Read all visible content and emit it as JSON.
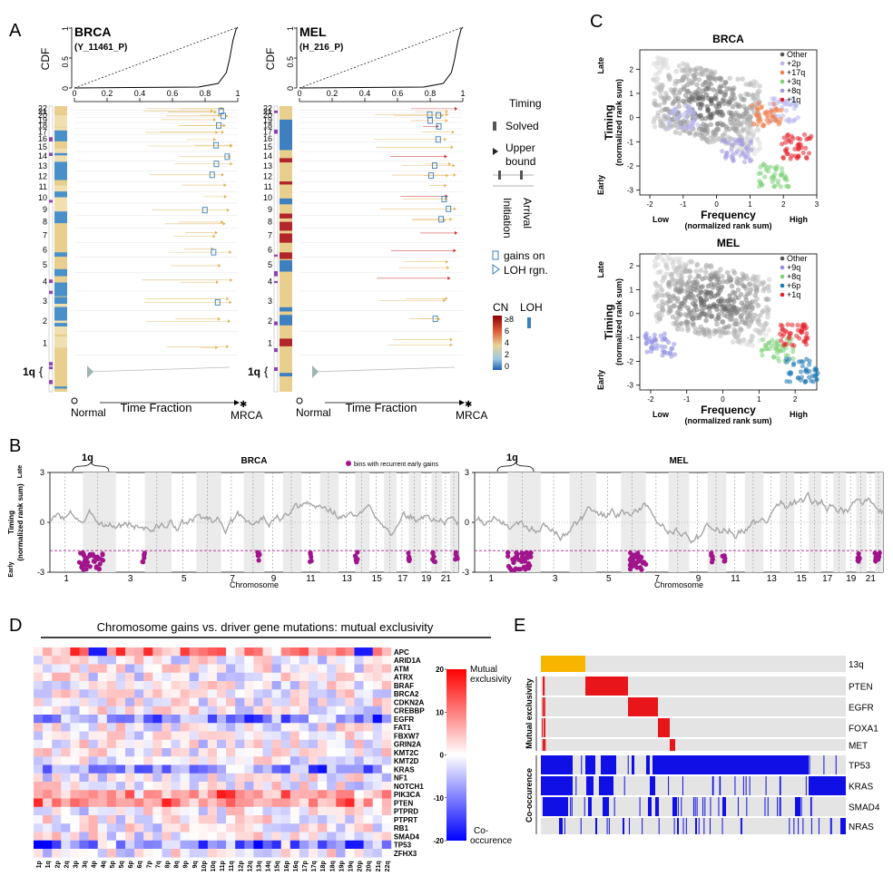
{
  "panel_letters": {
    "a": "A",
    "b": "B",
    "c": "C",
    "d": "D",
    "e": "E"
  },
  "panel_a": {
    "tumors": [
      {
        "name": "BRCA",
        "sample": "(Y_11461_P)"
      },
      {
        "name": "MEL",
        "sample": "(H_216_P)"
      }
    ],
    "cdf_label": "CDF",
    "cdf_ticks": [
      "0",
      "0.5",
      "1"
    ],
    "x_ticks": [
      "0",
      "0.2",
      "0.4",
      "0.6",
      "0.8",
      "1"
    ],
    "chromosomes": [
      "22",
      "21",
      "20",
      "19",
      "18",
      "17",
      "16",
      "15",
      "14",
      "13",
      "12",
      "11",
      "10",
      "9",
      "8",
      "7",
      "6",
      "5",
      "4",
      "3",
      "2",
      "1"
    ],
    "highlight": "1q",
    "normal": "Normal",
    "time_fraction": "Time Fraction",
    "mrca": "MRCA",
    "legend": {
      "timing": "Timing",
      "solved": "Solved",
      "upper": "Upper",
      "bound": "bound",
      "initiation": "Initiation",
      "arrival": "Arrival",
      "gains_on": "gains on",
      "loh_rgn": "LOH rgn.",
      "cn": "CN",
      "loh": "LOH",
      "cn_ticks": [
        "≥8",
        "6",
        "4",
        "2",
        "0"
      ]
    }
  },
  "panel_b": {
    "titles": [
      "BRCA",
      "MEL"
    ],
    "bracket": "1q",
    "legend": "bins with recurrent early gains",
    "ylabel_top": "Timing",
    "ylabel_bottom": "(normalized rank sum)",
    "y_late": "Late",
    "y_early": "Early",
    "y_ticks": [
      "3",
      "0",
      "-3"
    ],
    "chrom_ticks": [
      "1",
      "3",
      "5",
      "7",
      "9",
      "11",
      "13",
      "15",
      "17",
      "19",
      "21"
    ],
    "xlabel": "Chromosome"
  },
  "panel_c": {
    "brca": {
      "title": "BRCA",
      "legend": [
        "Other",
        "+2p",
        "+17q",
        "+3q",
        "+8q",
        "+1q"
      ],
      "legend_colors": [
        "#555555",
        "#b9b9f0",
        "#f27f4b",
        "#7fd17a",
        "#a39be0",
        "#e6202a"
      ],
      "y_ticks": [
        "2",
        "1",
        "0",
        "-1",
        "-2",
        "-3"
      ],
      "x_ticks": [
        "-2",
        "-1",
        "0",
        "1",
        "2",
        "3"
      ]
    },
    "mel": {
      "title": "MEL",
      "legend": [
        "Other",
        "+9q",
        "+8q",
        "+6p",
        "+1q"
      ],
      "legend_colors": [
        "#555555",
        "#8f8fe6",
        "#7fd17a",
        "#1f78b4",
        "#e6202a"
      ],
      "y_ticks": [
        "2",
        "1",
        "0",
        "-1",
        "-2",
        "-3"
      ],
      "x_ticks": [
        "-2",
        "-1",
        "0",
        "1",
        "2"
      ]
    },
    "ylabel": "Timing",
    "ylabel_sub": "(normalized rank sum)",
    "late": "Late",
    "early": "Early",
    "xlabel": "Frequency",
    "xlabel_sub": "(normalized rank sum)",
    "low": "Low",
    "high": "High"
  },
  "panel_d": {
    "title": "Chromosome gains vs. driver gene mutations: mutual exclusivity",
    "genes": [
      "APC",
      "ARID1A",
      "ATM",
      "ATRX",
      "BRAF",
      "BRCA2",
      "CDKN2A",
      "CREBBP",
      "EGFR",
      "FAT1",
      "FBXW7",
      "GRIN2A",
      "KMT2C",
      "KMT2D",
      "KRAS",
      "NF1",
      "NOTCH1",
      "PIK3CA",
      "PTEN",
      "PTPRD",
      "PTPRT",
      "RB1",
      "SMAD4",
      "TP53",
      "ZFHX3"
    ],
    "arms": [
      "1p",
      "1q",
      "2p",
      "2q",
      "3p",
      "3q",
      "4p",
      "4q",
      "5p",
      "5q",
      "6p",
      "6q",
      "7p",
      "7q",
      "8p",
      "8q",
      "9p",
      "9q",
      "10p",
      "10q",
      "11p",
      "11q",
      "12p",
      "12q",
      "13q",
      "14q",
      "15q",
      "16p",
      "16q",
      "17p",
      "17q",
      "18p",
      "18q",
      "19p",
      "19q",
      "20p",
      "20q",
      "21q",
      "22q"
    ],
    "colorbar_ticks": [
      "20",
      "10",
      "0",
      "-10",
      "-20"
    ],
    "top_label_1": "Mutual",
    "top_label_2": "exclusivity",
    "bottom_label_1": "Co-",
    "bottom_label_2": "occurence"
  },
  "panel_e": {
    "rows": [
      "13q",
      "PTEN",
      "EGFR",
      "FOXA1",
      "MET",
      "TP53",
      "KRAS",
      "SMAD4",
      "NRAS"
    ],
    "group_me": "Mutual exclusivity",
    "group_co": "Co-occurence",
    "colors": {
      "gain": "#f7b500",
      "me": "#e8161b",
      "co": "#1010e6",
      "bg": "#e4e4e4"
    }
  },
  "chart_data": [
    {
      "type": "line",
      "title": "BRCA",
      "x_label": "Chromosome",
      "y_label": "Timing (normalized rank sum)",
      "ylim": [
        -3,
        3
      ],
      "recurrent_early_gains": [
        "1q",
        "3",
        "9",
        "11",
        "15",
        "17",
        "19",
        "21"
      ]
    },
    {
      "type": "line",
      "title": "MEL",
      "x_label": "Chromosome",
      "y_label": "Timing (normalized rank sum)",
      "ylim": [
        -3,
        3
      ],
      "recurrent_early_gains": [
        "1q",
        "6p",
        "8",
        "9",
        "19",
        "21"
      ]
    },
    {
      "type": "scatter",
      "title": "BRCA",
      "x_label": "Frequency",
      "y_label": "Timing",
      "xlim": [
        -2.3,
        3
      ],
      "ylim": [
        -3.2,
        2.8
      ],
      "series": [
        {
          "name": "+2p",
          "center": [
            -1.1,
            0.0
          ]
        },
        {
          "name": "+17q",
          "center": [
            1.9,
            -2.4
          ]
        },
        {
          "name": "+3q",
          "center": [
            1.5,
            0.3
          ]
        },
        {
          "name": "+8q",
          "center": [
            0.6,
            -1.4
          ]
        },
        {
          "name": "+1q",
          "center": [
            2.4,
            -1.2
          ]
        }
      ]
    },
    {
      "type": "scatter",
      "title": "MEL",
      "x_label": "Frequency",
      "y_label": "Timing",
      "xlim": [
        -2.3,
        2.6
      ],
      "ylim": [
        -3.2,
        2.5
      ],
      "series": [
        {
          "name": "+9q",
          "center": [
            -1.7,
            -1.3
          ]
        },
        {
          "name": "+8q",
          "center": [
            1.5,
            -1.5
          ]
        },
        {
          "name": "+6p",
          "center": [
            2.2,
            -2.4
          ]
        },
        {
          "name": "+1q",
          "center": [
            2.0,
            -0.9
          ]
        }
      ]
    },
    {
      "type": "heatmap",
      "title": "Chromosome gains vs. driver gene mutations: mutual exclusivity",
      "rows": "genes",
      "cols": "arms",
      "range": [
        -20,
        20
      ]
    }
  ]
}
